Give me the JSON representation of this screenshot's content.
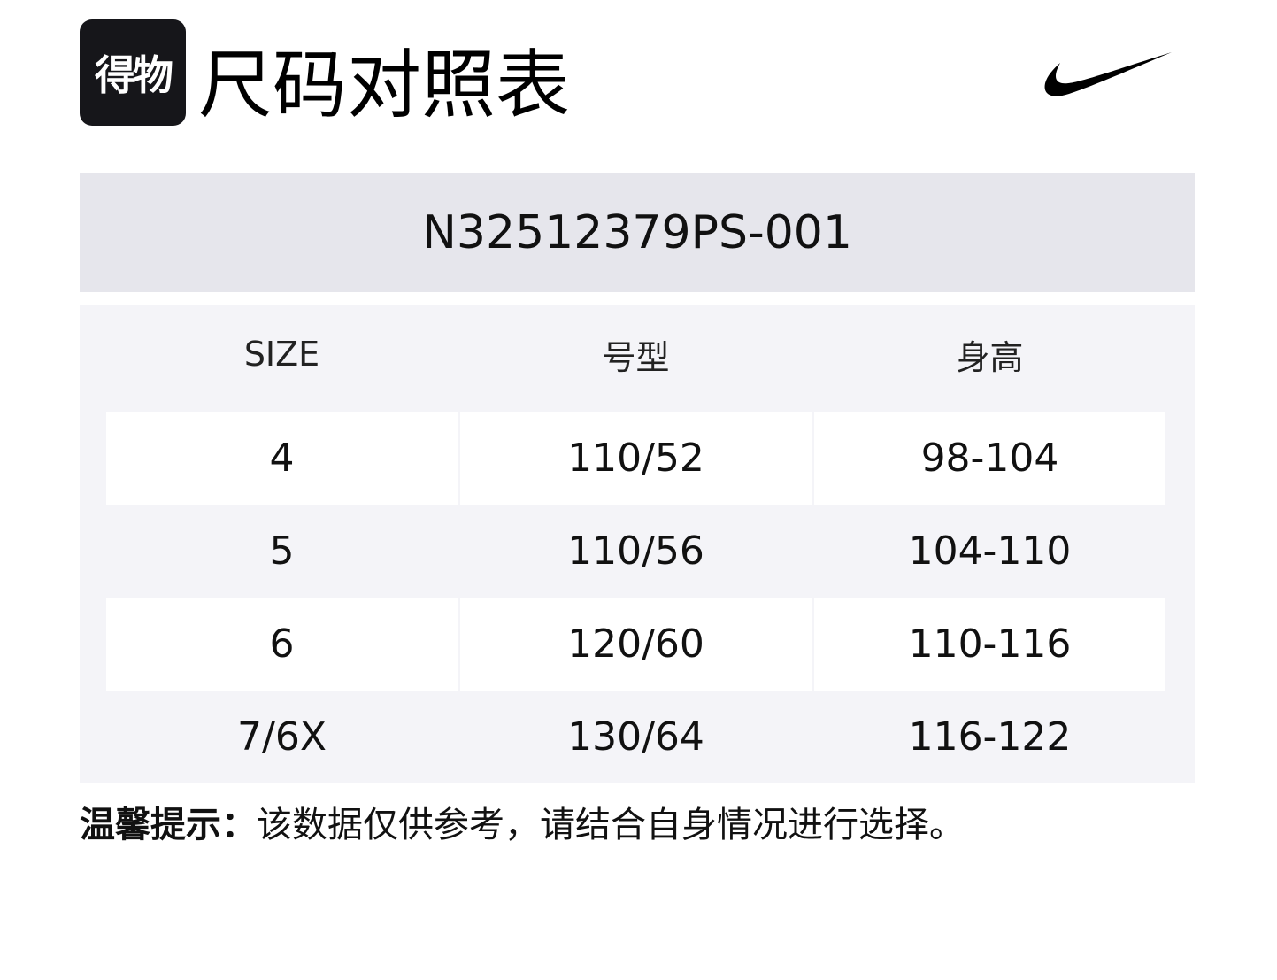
{
  "brand": {
    "logo_text": "得物"
  },
  "title": "尺码对照表",
  "product_logo": "nike-swoosh",
  "product_code": "N32512379PS-001",
  "table": {
    "headers": [
      "SIZE",
      "号型",
      "身高"
    ],
    "rows": [
      [
        "4",
        "110/52",
        "98-104"
      ],
      [
        "5",
        "110/56",
        "104-110"
      ],
      [
        "6",
        "120/60",
        "110-116"
      ],
      [
        "7/6X",
        "130/64",
        "116-122"
      ]
    ]
  },
  "note": {
    "label": "温馨提示：",
    "text": "该数据仅供参考，请结合自身情况进行选择。"
  },
  "colors": {
    "band": "#e6e6ec",
    "table_bg": "#f4f4f8",
    "logo_bg": "#16161a"
  }
}
